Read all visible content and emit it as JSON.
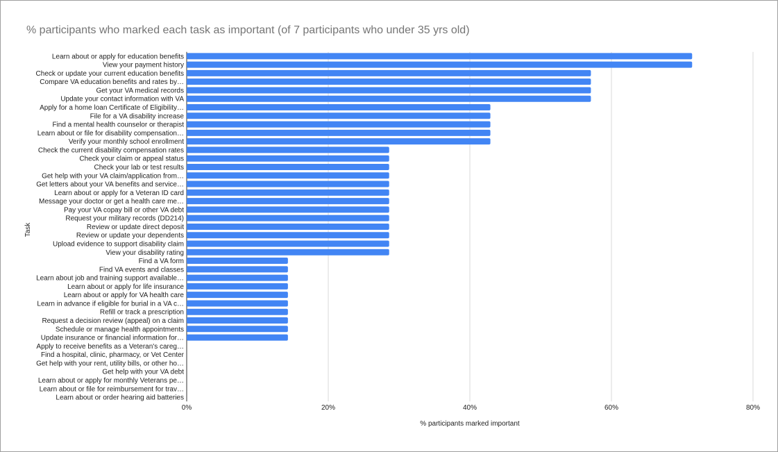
{
  "chart_data": {
    "type": "bar",
    "orientation": "horizontal",
    "title": "% participants who marked each task as important (of 7 participants who under 35 yrs old)",
    "xlabel": "% participants marked important",
    "ylabel": "Task",
    "xlim": [
      0,
      0.8
    ],
    "xticks": [
      "0%",
      "20%",
      "40%",
      "60%",
      "80%"
    ],
    "grid": true,
    "bar_color": "#4285f4",
    "categories": [
      "Learn about or apply for education benefits",
      "View your payment history",
      "Check or update your current education benefits",
      "Compare VA education benefits and rates by…",
      "Get your VA medical records",
      "Update your contact information with VA",
      "Apply for a home loan Certificate of Eligibility…",
      "File for a VA disability increase",
      "Find a mental health counselor or therapist",
      "Learn about or file for disability compensation…",
      "Verify your monthly school enrollment",
      "Check the current disability compensation rates",
      "Check your claim or appeal status",
      "Check your lab or test results",
      "Get help with your VA claim/application from…",
      "Get letters about your VA benefits and service…",
      "Learn about or apply for a Veteran ID card",
      "Message your doctor or get a health care me…",
      "Pay your VA copay bill or other VA debt",
      "Request your military records (DD214)",
      "Review or update direct deposit",
      "Review or update your dependents",
      "Upload evidence to support disability claim",
      "View your disability rating",
      "Find a VA form",
      "Find VA events and classes",
      "Learn about job and training support available…",
      "Learn about or apply for life insurance",
      "Learn about or apply for VA health care",
      "Learn in advance if eligible for burial in a VA c…",
      "Refill or track a prescription",
      "Request a decision review (appeal) on a claim",
      "Schedule or manage health appointments",
      "Update insurance or financial information for…",
      "Apply to receive benefits as a Veteran's careg…",
      "Find a hospital, clinic, pharmacy, or Vet Center",
      "Get help with your rent, utility bills, or other ho…",
      "Get help with your VA debt",
      "Learn about or apply for monthly Veterans pe…",
      "Learn about or file for reimbursement for trav…",
      "Learn about or order hearing aid batteries"
    ],
    "values": [
      0.714,
      0.714,
      0.571,
      0.571,
      0.571,
      0.571,
      0.429,
      0.429,
      0.429,
      0.429,
      0.429,
      0.286,
      0.286,
      0.286,
      0.286,
      0.286,
      0.286,
      0.286,
      0.286,
      0.286,
      0.286,
      0.286,
      0.286,
      0.286,
      0.143,
      0.143,
      0.143,
      0.143,
      0.143,
      0.143,
      0.143,
      0.143,
      0.143,
      0.143,
      0,
      0,
      0,
      0,
      0,
      0,
      0
    ]
  }
}
